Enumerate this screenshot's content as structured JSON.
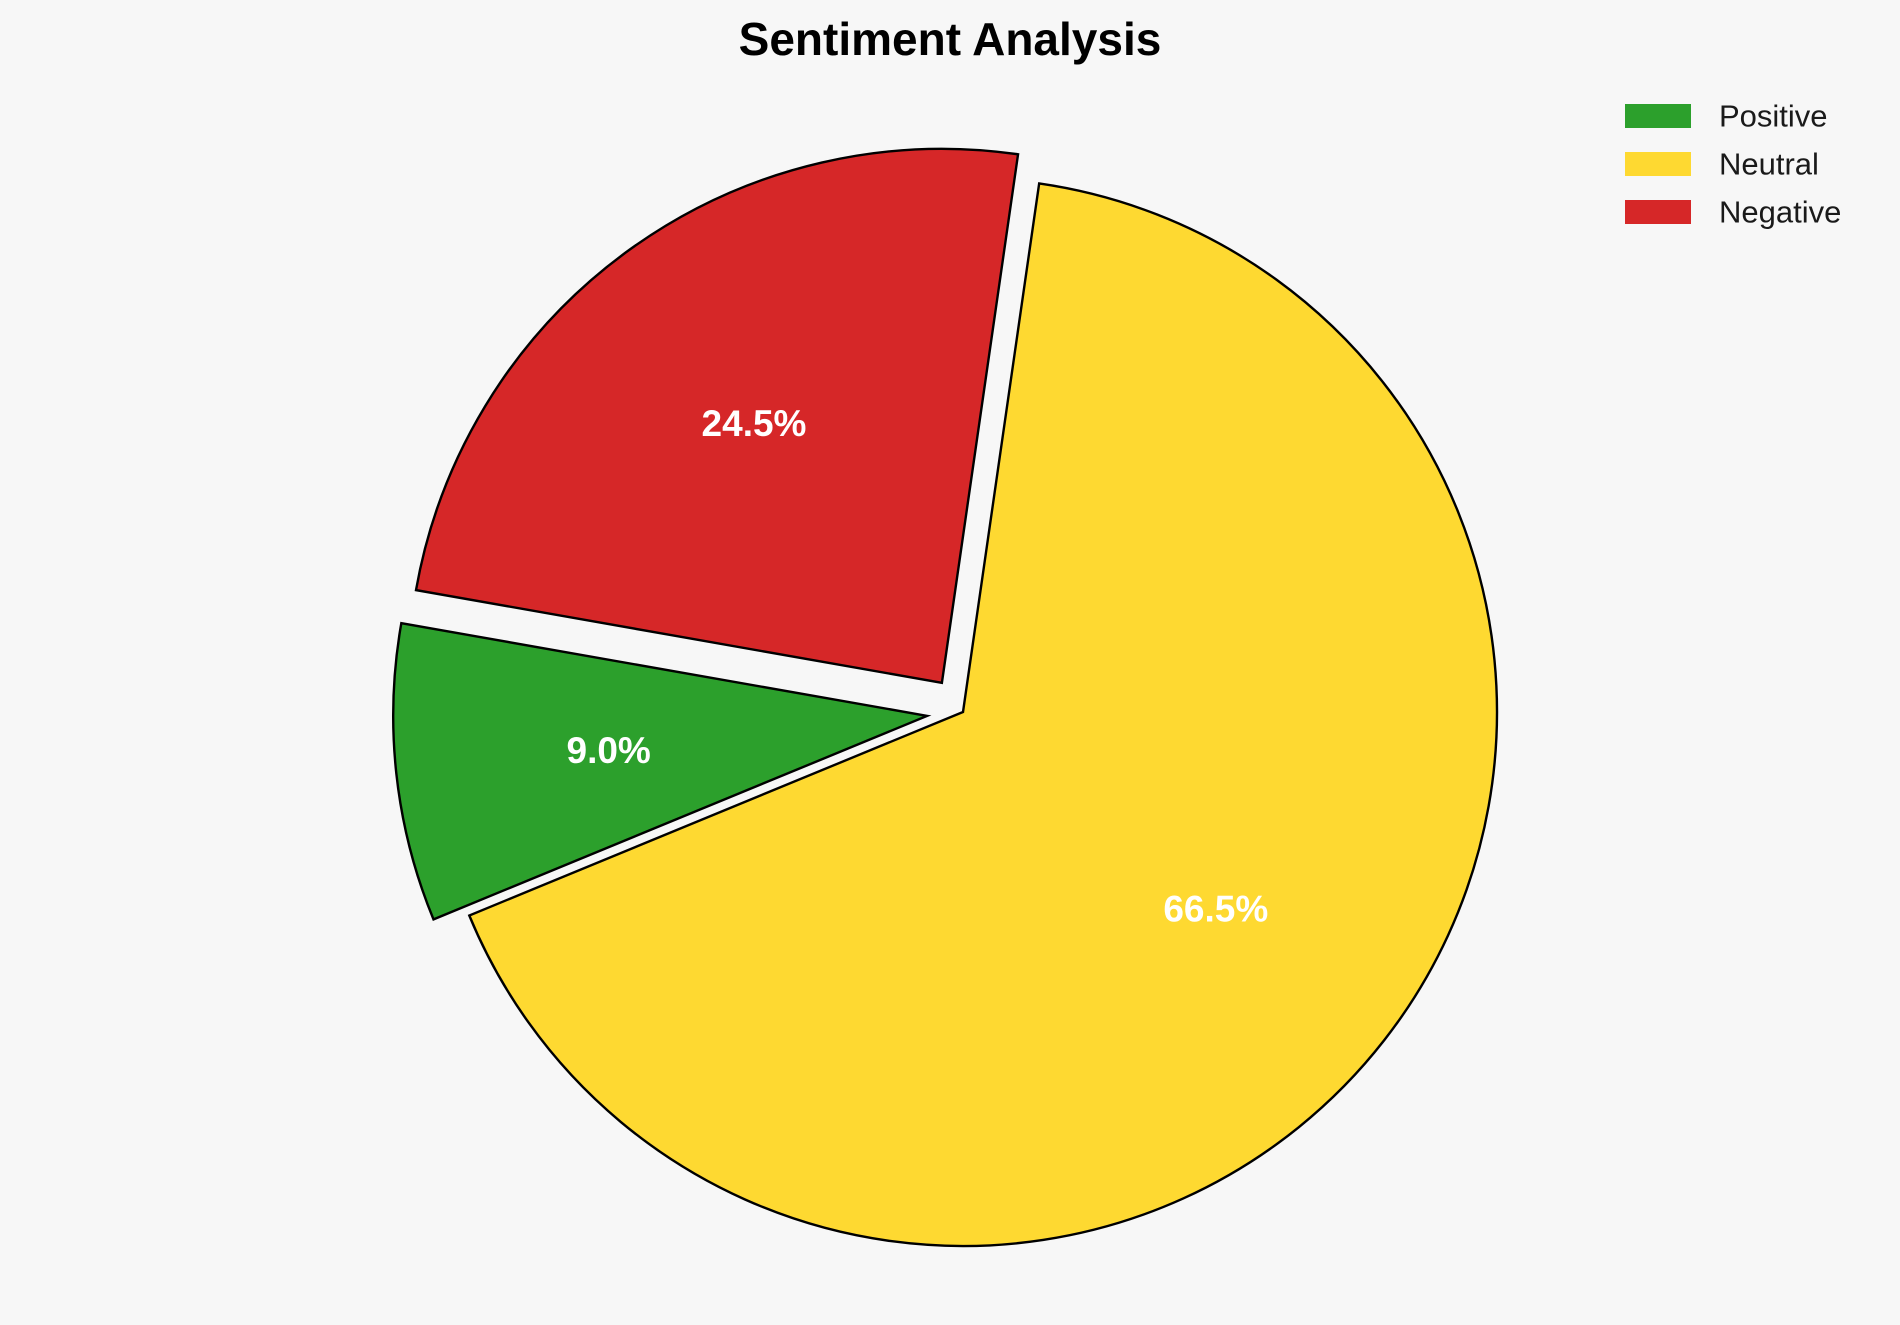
{
  "chart_data": {
    "type": "pie",
    "title": "Sentiment Analysis",
    "categories": [
      "Positive",
      "Neutral",
      "Negative"
    ],
    "values": [
      9.0,
      66.5,
      24.5
    ],
    "labels": [
      "9.0%",
      "66.5%",
      "24.5%"
    ],
    "colors": [
      "#2ca02c",
      "#fed931",
      "#d62728"
    ],
    "exploded": [
      true,
      false,
      true
    ],
    "legend_position": "top-right",
    "start_angle_deg": 170,
    "direction": "counterclockwise"
  }
}
